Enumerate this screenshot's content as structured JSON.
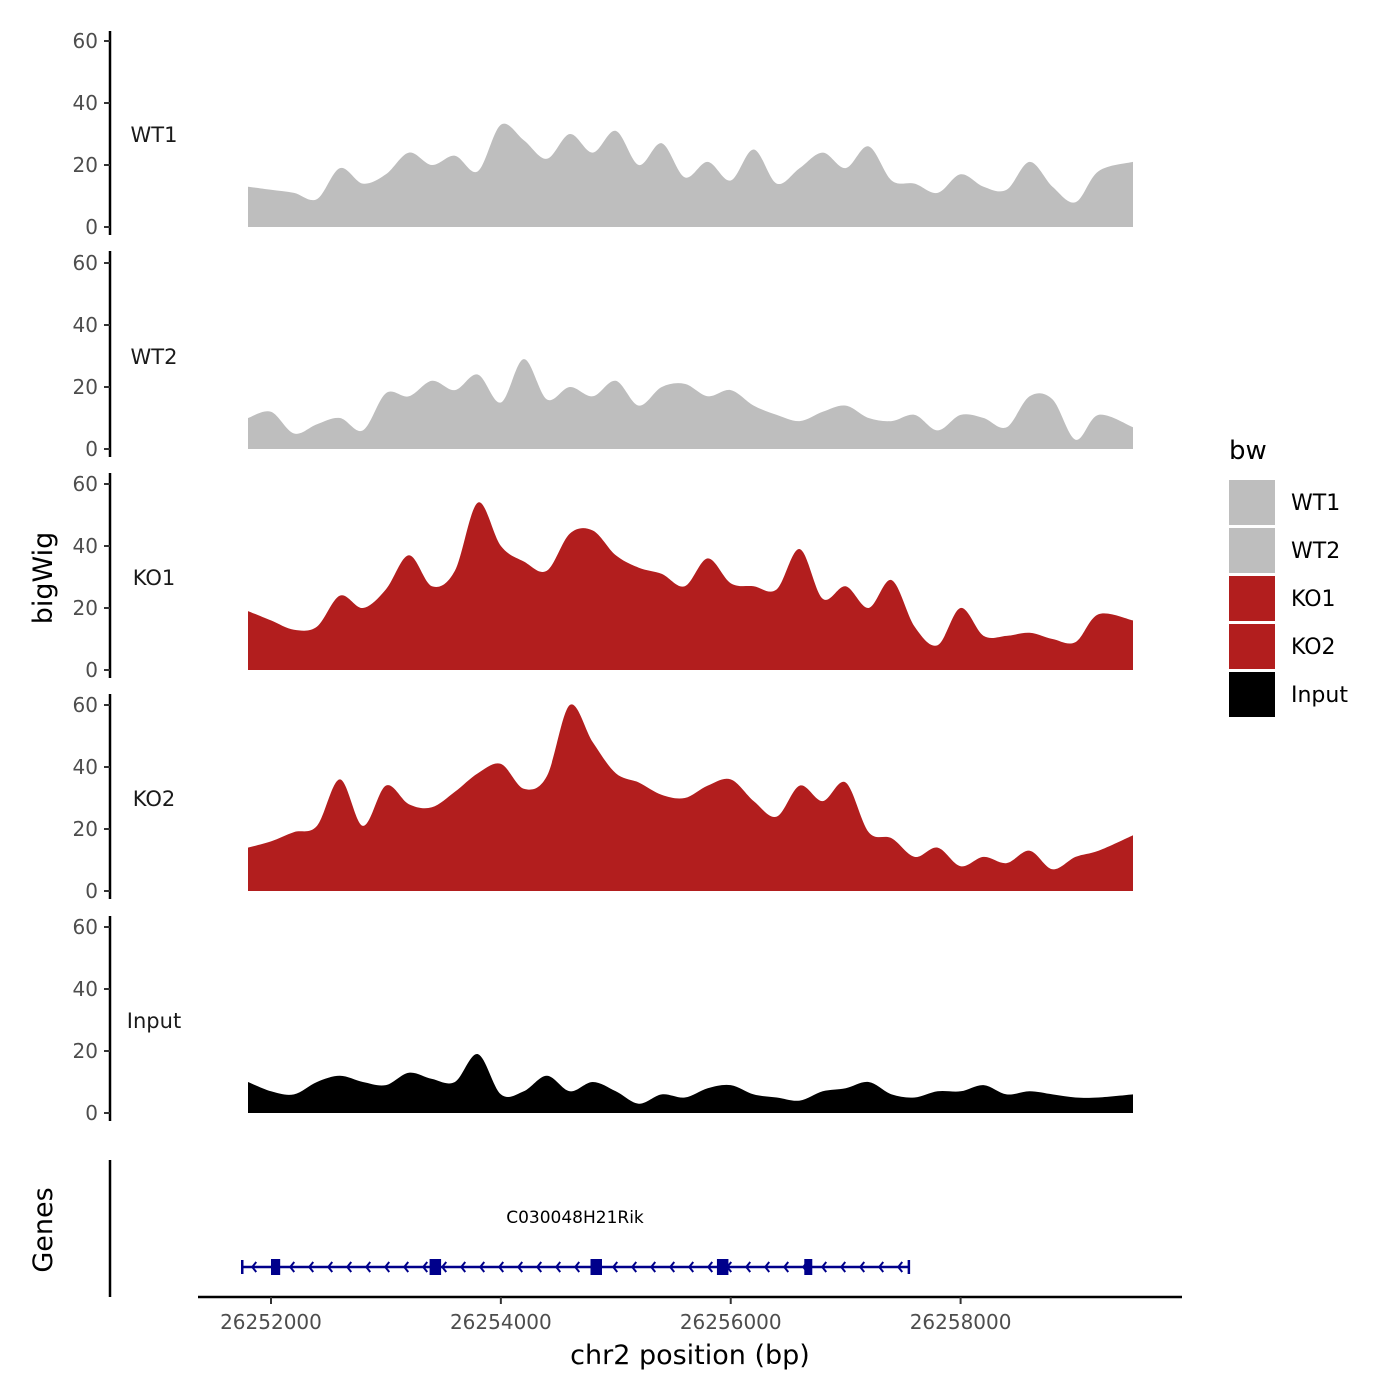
{
  "chart_data": {
    "type": "area",
    "region": {
      "chromosome": "chr2",
      "start": 26251800,
      "end": 26259500
    },
    "xlabel": "chr2 position (bp)",
    "xticks": [
      26252000,
      26254000,
      26256000,
      26258000
    ],
    "ylabel": "bigWig",
    "ylim": [
      0,
      60
    ],
    "yticks": [
      0,
      20,
      40,
      60
    ],
    "legend": {
      "title": "bw",
      "position": "right",
      "items": [
        {
          "label": "WT1",
          "color": "#bebebe"
        },
        {
          "label": "WT2",
          "color": "#bebebe"
        },
        {
          "label": "KO1",
          "color": "#b21e1e"
        },
        {
          "label": "KO2",
          "color": "#b21e1e"
        },
        {
          "label": "Input",
          "color": "#000000"
        }
      ]
    },
    "x": [
      26251800,
      26252000,
      26252200,
      26252400,
      26252600,
      26252800,
      26253000,
      26253200,
      26253400,
      26253600,
      26253800,
      26254000,
      26254200,
      26254400,
      26254600,
      26254800,
      26255000,
      26255200,
      26255400,
      26255600,
      26255800,
      26256000,
      26256200,
      26256400,
      26256600,
      26256800,
      26257000,
      26257200,
      26257400,
      26257600,
      26257800,
      26258000,
      26258200,
      26258400,
      26258600,
      26258800,
      26259000,
      26259200,
      26259500
    ],
    "series": [
      {
        "name": "WT1",
        "color": "#bebebe",
        "values": [
          13,
          12,
          11,
          9,
          19,
          14,
          17,
          24,
          20,
          23,
          18,
          33,
          28,
          22,
          30,
          24,
          31,
          20,
          27,
          16,
          21,
          15,
          25,
          14,
          19,
          24,
          19,
          26,
          15,
          14,
          11,
          17,
          13,
          12,
          21,
          13,
          8,
          18,
          21
        ]
      },
      {
        "name": "WT2",
        "color": "#bebebe",
        "values": [
          10,
          12,
          5,
          8,
          10,
          6,
          18,
          17,
          22,
          19,
          24,
          15,
          29,
          16,
          20,
          17,
          22,
          14,
          20,
          21,
          17,
          19,
          14,
          11,
          9,
          12,
          14,
          10,
          9,
          11,
          6,
          11,
          10,
          7,
          17,
          16,
          3,
          11,
          7
        ]
      },
      {
        "name": "KO1",
        "color": "#b21e1e",
        "values": [
          19,
          16,
          13,
          14,
          24,
          20,
          26,
          37,
          27,
          32,
          54,
          40,
          35,
          32,
          44,
          45,
          37,
          33,
          31,
          27,
          36,
          28,
          27,
          26,
          39,
          23,
          27,
          20,
          29,
          14,
          8,
          20,
          11,
          11,
          12,
          10,
          9,
          18,
          16
        ]
      },
      {
        "name": "KO2",
        "color": "#b21e1e",
        "values": [
          14,
          16,
          19,
          21,
          36,
          21,
          34,
          28,
          27,
          32,
          38,
          41,
          33,
          37,
          60,
          48,
          38,
          35,
          31,
          30,
          34,
          36,
          29,
          24,
          34,
          29,
          35,
          19,
          17,
          11,
          14,
          8,
          11,
          9,
          13,
          7,
          11,
          13,
          18
        ]
      },
      {
        "name": "Input",
        "color": "#000000",
        "values": [
          10,
          7,
          6,
          10,
          12,
          10,
          9,
          13,
          11,
          10,
          19,
          6,
          7,
          12,
          7,
          10,
          7,
          3,
          6,
          5,
          8,
          9,
          6,
          5,
          4,
          7,
          8,
          10,
          6,
          5,
          7,
          7,
          9,
          6,
          7,
          6,
          5,
          5,
          6
        ]
      }
    ],
    "genes": {
      "title": "Genes",
      "items": [
        {
          "name": "C030048H21Rik",
          "strand": "-",
          "start": 26251750,
          "end": 26257550,
          "exons": [
            [
              26252000,
              26252080
            ],
            [
              26253380,
              26253480
            ],
            [
              26254780,
              26254880
            ],
            [
              26255880,
              26255980
            ],
            [
              26256640,
              26256700
            ]
          ]
        }
      ]
    }
  }
}
